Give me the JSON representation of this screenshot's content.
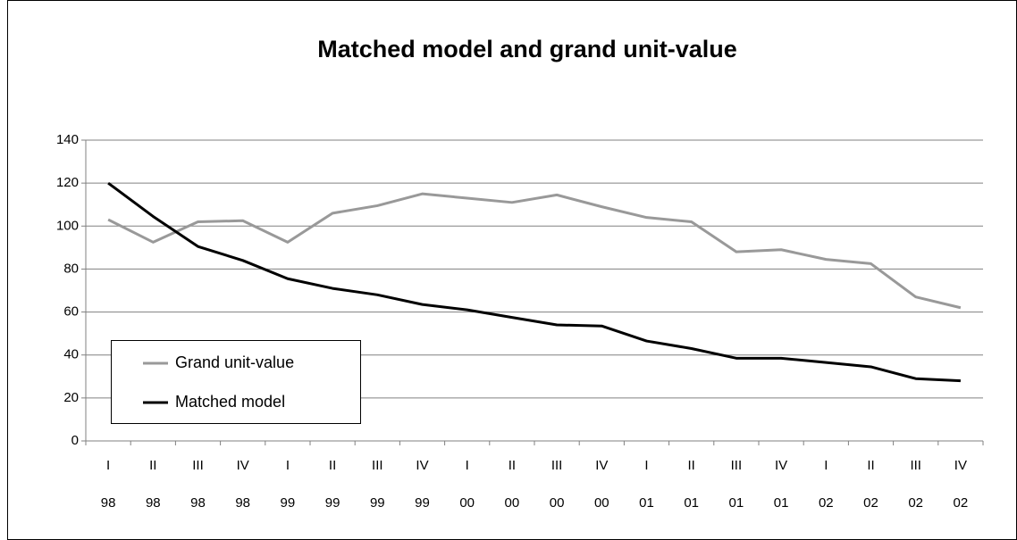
{
  "chart_data": {
    "type": "line",
    "title": "Matched model and grand unit-value",
    "categories": [
      "I",
      "II",
      "III",
      "IV",
      "I",
      "II",
      "III",
      "IV",
      "I",
      "II",
      "III",
      "IV",
      "I",
      "II",
      "III",
      "IV",
      "I",
      "II",
      "III",
      "IV"
    ],
    "category_years": [
      "98",
      "98",
      "98",
      "98",
      "99",
      "99",
      "99",
      "99",
      "00",
      "00",
      "00",
      "00",
      "01",
      "01",
      "01",
      "01",
      "02",
      "02",
      "02",
      "02"
    ],
    "series": [
      {
        "name": "Grand unit-value",
        "color": "#999999",
        "values": [
          103,
          92.5,
          102,
          102.5,
          92.5,
          106,
          109.5,
          115,
          113,
          111,
          114.5,
          109,
          104,
          102,
          88,
          89,
          84.5,
          82.5,
          67,
          62
        ]
      },
      {
        "name": "Matched model",
        "color": "#000000",
        "values": [
          120,
          104.5,
          90.5,
          84,
          75.5,
          71,
          68,
          63.5,
          61,
          57.5,
          54,
          53.5,
          46.5,
          43,
          38.5,
          38.5,
          36.5,
          34.5,
          29,
          28
        ]
      }
    ],
    "ylim": [
      0,
      140
    ],
    "yticks": [
      0,
      20,
      40,
      60,
      80,
      100,
      120,
      140
    ],
    "grid": true,
    "legend": "lower left"
  }
}
